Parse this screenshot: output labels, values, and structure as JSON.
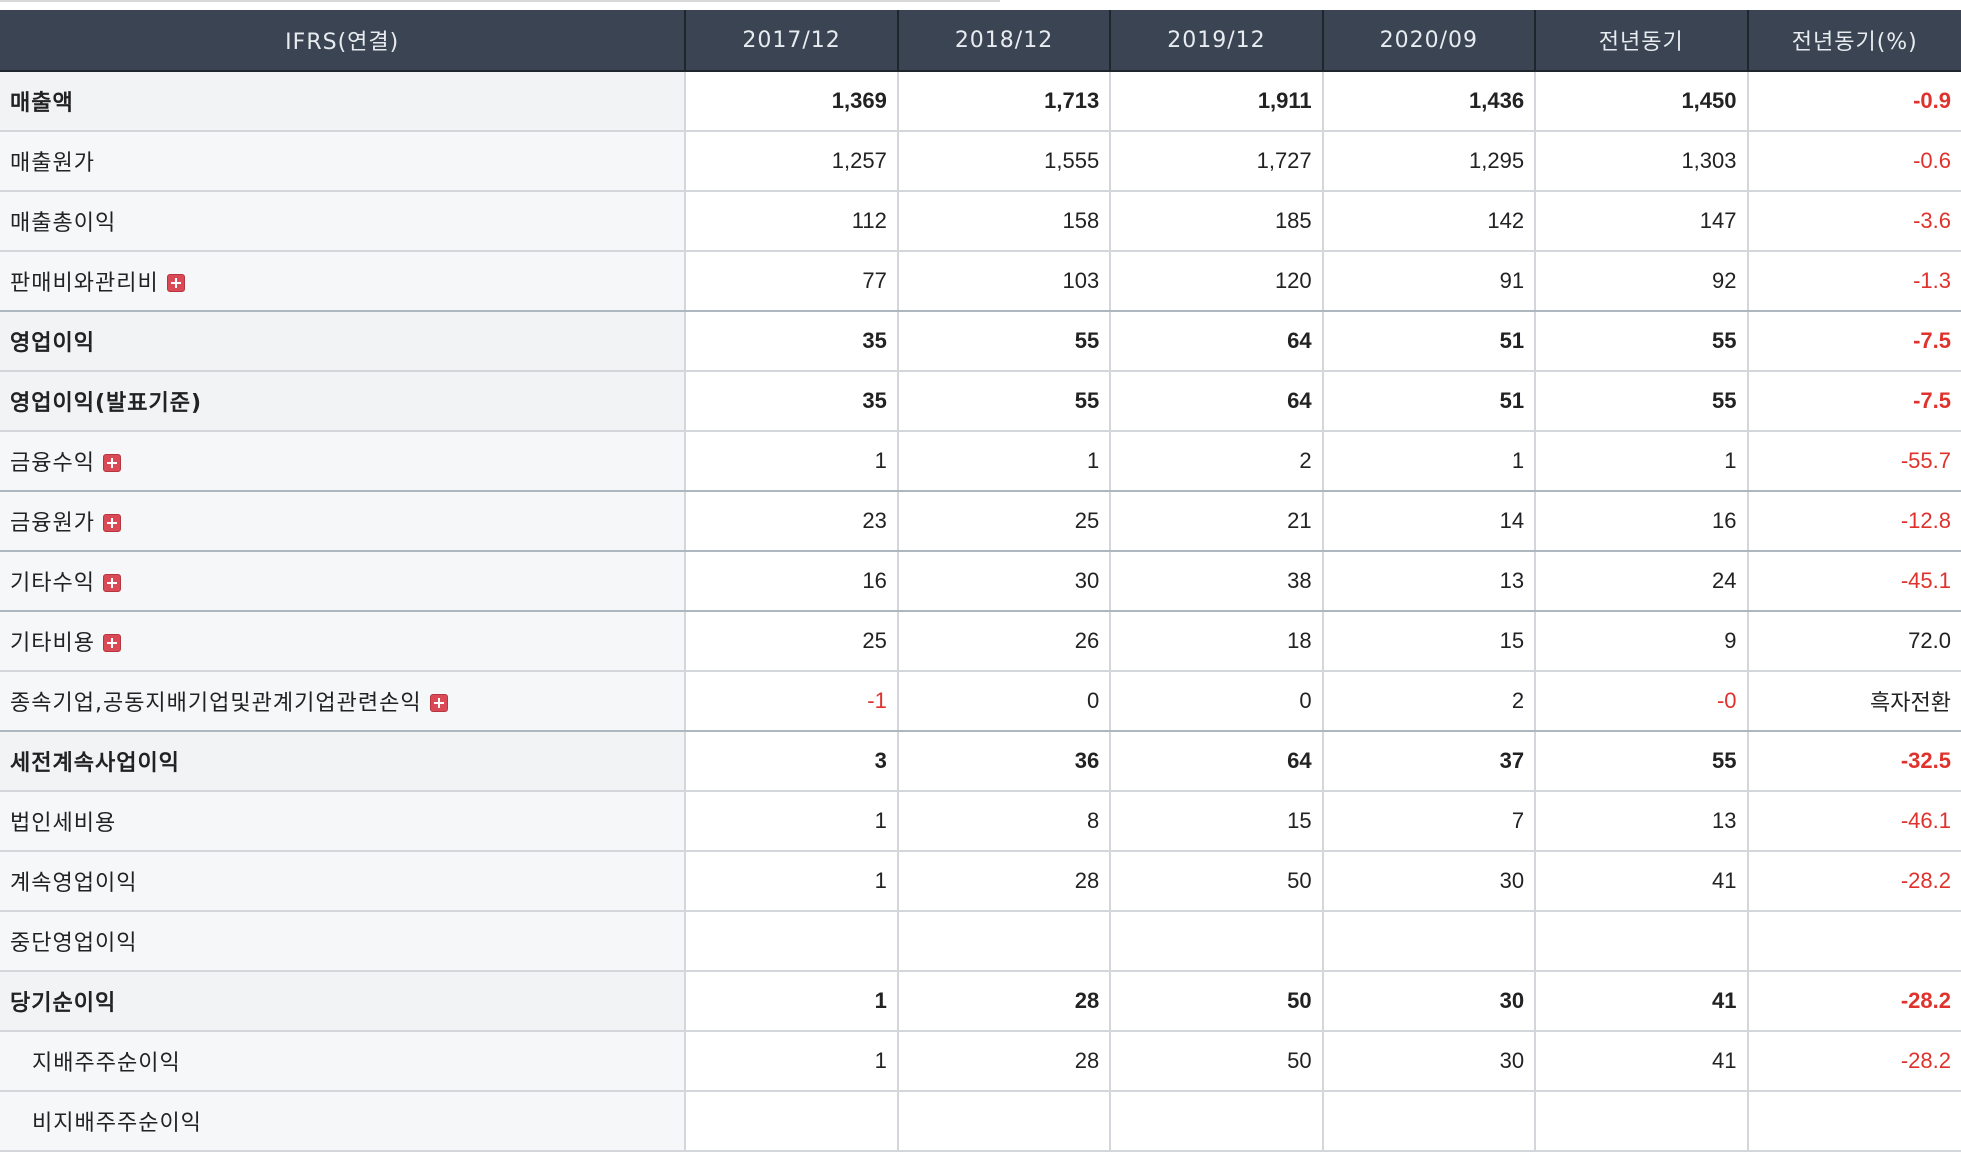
{
  "header": {
    "label": "IFRS(연결)",
    "periods": [
      "2017/12",
      "2018/12",
      "2019/12",
      "2020/09",
      "전년동기",
      "전년동기(%)"
    ]
  },
  "rows": [
    {
      "label": "매출액",
      "bold": true,
      "expandable": false,
      "indent": false,
      "values": [
        "1,369",
        "1,713",
        "1,911",
        "1,436",
        "1,450",
        "-0.9"
      ],
      "negative": [
        false,
        false,
        false,
        false,
        false,
        true
      ]
    },
    {
      "label": "매출원가",
      "bold": false,
      "expandable": false,
      "indent": false,
      "values": [
        "1,257",
        "1,555",
        "1,727",
        "1,295",
        "1,303",
        "-0.6"
      ],
      "negative": [
        false,
        false,
        false,
        false,
        false,
        true
      ]
    },
    {
      "label": "매출총이익",
      "bold": false,
      "expandable": false,
      "indent": false,
      "values": [
        "112",
        "158",
        "185",
        "142",
        "147",
        "-3.6"
      ],
      "negative": [
        false,
        false,
        false,
        false,
        false,
        true
      ]
    },
    {
      "label": "판매비와관리비",
      "bold": false,
      "expandable": true,
      "indent": false,
      "values": [
        "77",
        "103",
        "120",
        "91",
        "92",
        "-1.3"
      ],
      "negative": [
        false,
        false,
        false,
        false,
        false,
        true
      ]
    },
    {
      "label": "영업이익",
      "bold": true,
      "expandable": false,
      "indent": false,
      "values": [
        "35",
        "55",
        "64",
        "51",
        "55",
        "-7.5"
      ],
      "negative": [
        false,
        false,
        false,
        false,
        false,
        true
      ]
    },
    {
      "label": "영업이익(발표기준)",
      "bold": true,
      "expandable": false,
      "indent": false,
      "values": [
        "35",
        "55",
        "64",
        "51",
        "55",
        "-7.5"
      ],
      "negative": [
        false,
        false,
        false,
        false,
        false,
        true
      ]
    },
    {
      "label": "금융수익",
      "bold": false,
      "expandable": true,
      "indent": false,
      "values": [
        "1",
        "1",
        "2",
        "1",
        "1",
        "-55.7"
      ],
      "negative": [
        false,
        false,
        false,
        false,
        false,
        true
      ]
    },
    {
      "label": "금융원가",
      "bold": false,
      "expandable": true,
      "indent": false,
      "values": [
        "23",
        "25",
        "21",
        "14",
        "16",
        "-12.8"
      ],
      "negative": [
        false,
        false,
        false,
        false,
        false,
        true
      ]
    },
    {
      "label": "기타수익",
      "bold": false,
      "expandable": true,
      "indent": false,
      "values": [
        "16",
        "30",
        "38",
        "13",
        "24",
        "-45.1"
      ],
      "negative": [
        false,
        false,
        false,
        false,
        false,
        true
      ]
    },
    {
      "label": "기타비용",
      "bold": false,
      "expandable": true,
      "indent": false,
      "values": [
        "25",
        "26",
        "18",
        "15",
        "9",
        "72.0"
      ],
      "negative": [
        false,
        false,
        false,
        false,
        false,
        false
      ]
    },
    {
      "label": "종속기업,공동지배기업및관계기업관련손익",
      "bold": false,
      "expandable": true,
      "indent": false,
      "values": [
        "-1",
        "0",
        "0",
        "2",
        "-0",
        "흑자전환"
      ],
      "negative": [
        true,
        false,
        false,
        false,
        true,
        false
      ]
    },
    {
      "label": "세전계속사업이익",
      "bold": true,
      "expandable": false,
      "indent": false,
      "values": [
        "3",
        "36",
        "64",
        "37",
        "55",
        "-32.5"
      ],
      "negative": [
        false,
        false,
        false,
        false,
        false,
        true
      ]
    },
    {
      "label": "법인세비용",
      "bold": false,
      "expandable": false,
      "indent": false,
      "values": [
        "1",
        "8",
        "15",
        "7",
        "13",
        "-46.1"
      ],
      "negative": [
        false,
        false,
        false,
        false,
        false,
        true
      ]
    },
    {
      "label": "계속영업이익",
      "bold": false,
      "expandable": false,
      "indent": false,
      "values": [
        "1",
        "28",
        "50",
        "30",
        "41",
        "-28.2"
      ],
      "negative": [
        false,
        false,
        false,
        false,
        false,
        true
      ]
    },
    {
      "label": "중단영업이익",
      "bold": false,
      "expandable": false,
      "indent": false,
      "values": [
        "",
        "",
        "",
        "",
        "",
        ""
      ],
      "negative": [
        false,
        false,
        false,
        false,
        false,
        false
      ]
    },
    {
      "label": "당기순이익",
      "bold": true,
      "expandable": false,
      "indent": false,
      "values": [
        "1",
        "28",
        "50",
        "30",
        "41",
        "-28.2"
      ],
      "negative": [
        false,
        false,
        false,
        false,
        false,
        true
      ]
    },
    {
      "label": "지배주주순이익",
      "bold": false,
      "expandable": false,
      "indent": true,
      "values": [
        "1",
        "28",
        "50",
        "30",
        "41",
        "-28.2"
      ],
      "negative": [
        false,
        false,
        false,
        false,
        false,
        true
      ]
    },
    {
      "label": "비지배주주순이익",
      "bold": false,
      "expandable": false,
      "indent": true,
      "values": [
        "",
        "",
        "",
        "",
        "",
        ""
      ],
      "negative": [
        false,
        false,
        false,
        false,
        false,
        false
      ]
    }
  ]
}
